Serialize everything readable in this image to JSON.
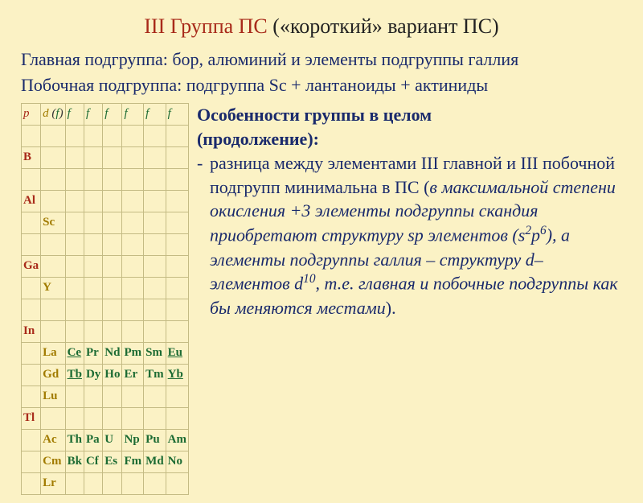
{
  "title": {
    "left": "III Группа ПС",
    "right": " («короткий» вариант ПС)"
  },
  "subtitle": {
    "line1": "Главная подгруппа: бор, алюминий и элементы подгруппы галлия",
    "line2": "Побочная подгруппа: подгруппа Sc + лантаноиды + актиниды"
  },
  "table": {
    "headers": {
      "c0": "p",
      "c1_d": "d",
      "c1_paren_open": " (",
      "c1_f": "f",
      "c1_paren_close": ")",
      "cf": "f"
    },
    "rows": {
      "B": "B",
      "Al": "Al",
      "Sc": "Sc",
      "Ga": "Ga",
      "Y": "Y",
      "In": "In",
      "La": "La",
      "Gd": "Gd",
      "Lu": "Lu",
      "Ce": "Ce",
      "Tb": "Tb",
      "Pr": "Pr",
      "Dy": "Dy",
      "Nd": "Nd",
      "Ho": "Ho",
      "Pm": "Pm",
      "Er": "Er",
      "Sm": "Sm",
      "Tm": "Tm",
      "Eu": "Eu",
      "Yb": "Yb",
      "Tl": "Tl",
      "Ac": "Ac",
      "Cm": "Cm",
      "Lr": "Lr",
      "Th": "Th",
      "Bk": "Bk",
      "Pa": "Pa",
      "Cf": "Cf",
      "U": "U",
      "Es": "Es",
      "Np": "Np",
      "Fm": "Fm",
      "Pu": "Pu",
      "Md": "Md",
      "Am": "Am",
      "No": "No"
    }
  },
  "text": {
    "heading1": "Особенности группы в целом",
    "heading2": "(продолжение):",
    "dash": "-",
    "body_pre_ital": "разница между элементами III главной и III побочной подгрупп минимальна в ПС (",
    "body_ital_1": "в максимальной степени окисления +3 элементы подгруппы скандия приобретают структуру sp элементов (s",
    "sup2": "2",
    "body_ital_p": "p",
    "sup6": "6",
    "body_ital_2": "), а элементы подгруппы галлия – структуру d– элементов d",
    "sup10": "10",
    "body_ital_3": ", т.е. главная и побочные подгруппы как бы меняются местами",
    "body_tail": ")."
  },
  "colors": {
    "bg": "#fbf2c5",
    "title_red": "#a82a1a",
    "text_blue": "#1a2a6c",
    "table_border": "#c4bb84",
    "col_red": "#a82a1a",
    "col_yellow": "#a17b00",
    "col_green": "#1c6b33"
  },
  "fonts": {
    "title_size_pt": 20,
    "subtitle_size_pt": 17,
    "body_size_pt": 17,
    "table_size_pt": 11
  }
}
